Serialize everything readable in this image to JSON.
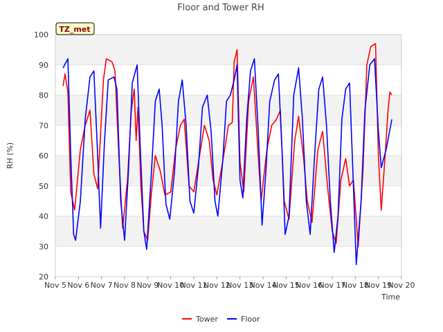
{
  "chart_data": {
    "type": "line",
    "title": "Floor and Tower RH",
    "xlabel": "Time",
    "ylabel": "RH (%)",
    "site_badge": "TZ_met",
    "x_ticks": [
      "Nov 5",
      "Nov 6",
      "Nov 7",
      "Nov 8",
      "Nov 9",
      "Nov 10",
      "Nov 11",
      "Nov 12",
      "Nov 13",
      "Nov 14",
      "Nov 15",
      "Nov 16",
      "Nov 17",
      "Nov 18",
      "Nov 19",
      "Nov 20"
    ],
    "xlim": [
      "2023-11-05",
      "2023-11-20"
    ],
    "ylim": [
      20,
      100
    ],
    "y_ticks": [
      20,
      30,
      40,
      50,
      60,
      70,
      80,
      90,
      100
    ],
    "grid": "horizontal bands",
    "legend_position": "bottom-center",
    "series": [
      {
        "name": "Tower",
        "color": "#ff0000",
        "points": [
          [
            "2023-11-05 08:00",
            83
          ],
          [
            "2023-11-05 10:00",
            87
          ],
          [
            "2023-11-05 13:00",
            81
          ],
          [
            "2023-11-05 16:00",
            48
          ],
          [
            "2023-11-05 20:00",
            42
          ],
          [
            "2023-11-06 02:00",
            62
          ],
          [
            "2023-11-06 07:00",
            70
          ],
          [
            "2023-11-06 12:00",
            75
          ],
          [
            "2023-11-06 16:00",
            54
          ],
          [
            "2023-11-06 20:00",
            49
          ],
          [
            "2023-11-07 02:00",
            85
          ],
          [
            "2023-11-07 05:00",
            92
          ],
          [
            "2023-11-07 11:00",
            91
          ],
          [
            "2023-11-07 14:00",
            88
          ],
          [
            "2023-11-07 18:00",
            60
          ],
          [
            "2023-11-07 22:00",
            36
          ],
          [
            "2023-11-08 03:00",
            52
          ],
          [
            "2023-11-08 07:00",
            75
          ],
          [
            "2023-11-08 10:00",
            82
          ],
          [
            "2023-11-08 12:00",
            65
          ],
          [
            "2023-11-08 14:00",
            76
          ],
          [
            "2023-11-08 17:00",
            50
          ],
          [
            "2023-11-08 20:00",
            35
          ],
          [
            "2023-11-09 00:00",
            32
          ],
          [
            "2023-11-09 04:00",
            48
          ],
          [
            "2023-11-09 08:00",
            60
          ],
          [
            "2023-11-09 13:00",
            55
          ],
          [
            "2023-11-09 18:00",
            47
          ],
          [
            "2023-11-10 00:00",
            48
          ],
          [
            "2023-11-10 05:00",
            62
          ],
          [
            "2023-11-10 10:00",
            70
          ],
          [
            "2023-11-10 14:00",
            72
          ],
          [
            "2023-11-10 19:00",
            50
          ],
          [
            "2023-11-11 00:00",
            48
          ],
          [
            "2023-11-11 06:00",
            60
          ],
          [
            "2023-11-11 11:00",
            70
          ],
          [
            "2023-11-11 16:00",
            65
          ],
          [
            "2023-11-11 20:00",
            52
          ],
          [
            "2023-11-12 00:00",
            47
          ],
          [
            "2023-11-12 06:00",
            58
          ],
          [
            "2023-11-12 12:00",
            70
          ],
          [
            "2023-11-12 16:00",
            71
          ],
          [
            "2023-11-12 18:00",
            91
          ],
          [
            "2023-11-12 21:00",
            95
          ],
          [
            "2023-11-13 00:00",
            58
          ],
          [
            "2023-11-13 04:00",
            48
          ],
          [
            "2023-11-13 09:00",
            78
          ],
          [
            "2023-11-13 14:00",
            86
          ],
          [
            "2023-11-13 18:00",
            65
          ],
          [
            "2023-11-13 22:00",
            45
          ],
          [
            "2023-11-14 04:00",
            62
          ],
          [
            "2023-11-14 09:00",
            70
          ],
          [
            "2023-11-14 14:00",
            72
          ],
          [
            "2023-11-14 18:00",
            75
          ],
          [
            "2023-11-14 22:00",
            45
          ],
          [
            "2023-11-15 03:00",
            39
          ],
          [
            "2023-11-15 09:00",
            65
          ],
          [
            "2023-11-15 13:00",
            73
          ],
          [
            "2023-11-15 18:00",
            60
          ],
          [
            "2023-11-15 22:00",
            45
          ],
          [
            "2023-11-16 03:00",
            38
          ],
          [
            "2023-11-16 09:00",
            62
          ],
          [
            "2023-11-16 14:00",
            68
          ],
          [
            "2023-11-16 19:00",
            50
          ],
          [
            "2023-11-17 00:00",
            35
          ],
          [
            "2023-11-17 04:00",
            31
          ],
          [
            "2023-11-17 09:00",
            52
          ],
          [
            "2023-11-17 14:00",
            59
          ],
          [
            "2023-11-17 18:00",
            50
          ],
          [
            "2023-11-17 22:00",
            52
          ],
          [
            "2023-11-18 03:00",
            30
          ],
          [
            "2023-11-18 08:00",
            55
          ],
          [
            "2023-11-18 12:00",
            90
          ],
          [
            "2023-11-18 16:00",
            96
          ],
          [
            "2023-11-18 21:00",
            97
          ],
          [
            "2023-11-19 00:00",
            60
          ],
          [
            "2023-11-19 03:00",
            42
          ],
          [
            "2023-11-19 07:00",
            60
          ],
          [
            "2023-11-19 10:00",
            75
          ],
          [
            "2023-11-19 12:00",
            81
          ],
          [
            "2023-11-19 14:00",
            80
          ]
        ]
      },
      {
        "name": "Floor",
        "color": "#0000ff",
        "points": [
          [
            "2023-11-05 08:00",
            89
          ],
          [
            "2023-11-05 13:00",
            92
          ],
          [
            "2023-11-05 16:00",
            60
          ],
          [
            "2023-11-05 19:00",
            34
          ],
          [
            "2023-11-05 21:00",
            32
          ],
          [
            "2023-11-06 02:00",
            45
          ],
          [
            "2023-11-06 07:00",
            72
          ],
          [
            "2023-11-06 12:00",
            86
          ],
          [
            "2023-11-06 16:00",
            88
          ],
          [
            "2023-11-06 20:00",
            60
          ],
          [
            "2023-11-06 23:00",
            36
          ],
          [
            "2023-11-07 03:00",
            64
          ],
          [
            "2023-11-07 07:00",
            85
          ],
          [
            "2023-11-07 13:00",
            86
          ],
          [
            "2023-11-07 16:00",
            82
          ],
          [
            "2023-11-07 20:00",
            45
          ],
          [
            "2023-11-08 00:00",
            32
          ],
          [
            "2023-11-08 04:00",
            55
          ],
          [
            "2023-11-08 08:00",
            84
          ],
          [
            "2023-11-08 13:00",
            90
          ],
          [
            "2023-11-08 16:00",
            65
          ],
          [
            "2023-11-08 20:00",
            35
          ],
          [
            "2023-11-08 23:00",
            29
          ],
          [
            "2023-11-09 04:00",
            55
          ],
          [
            "2023-11-09 08:00",
            78
          ],
          [
            "2023-11-09 12:00",
            82
          ],
          [
            "2023-11-09 15:00",
            70
          ],
          [
            "2023-11-09 19:00",
            44
          ],
          [
            "2023-11-09 23:00",
            39
          ],
          [
            "2023-11-10 04:00",
            55
          ],
          [
            "2023-11-10 08:00",
            78
          ],
          [
            "2023-11-10 12:00",
            85
          ],
          [
            "2023-11-10 16:00",
            70
          ],
          [
            "2023-11-10 20:00",
            45
          ],
          [
            "2023-11-11 00:00",
            41
          ],
          [
            "2023-11-11 05:00",
            57
          ],
          [
            "2023-11-11 09:00",
            76
          ],
          [
            "2023-11-11 14:00",
            80
          ],
          [
            "2023-11-11 18:00",
            68
          ],
          [
            "2023-11-11 22:00",
            45
          ],
          [
            "2023-11-12 01:00",
            40
          ],
          [
            "2023-11-12 06:00",
            58
          ],
          [
            "2023-11-12 10:00",
            78
          ],
          [
            "2023-11-12 14:00",
            80
          ],
          [
            "2023-11-12 18:00",
            85
          ],
          [
            "2023-11-12 21:00",
            90
          ],
          [
            "2023-11-13 00:00",
            52
          ],
          [
            "2023-11-13 03:00",
            46
          ],
          [
            "2023-11-13 07:00",
            72
          ],
          [
            "2023-11-13 11:00",
            88
          ],
          [
            "2023-11-13 15:00",
            92
          ],
          [
            "2023-11-13 19:00",
            68
          ],
          [
            "2023-11-13 23:00",
            37
          ],
          [
            "2023-11-14 03:00",
            55
          ],
          [
            "2023-11-14 07:00",
            78
          ],
          [
            "2023-11-14 12:00",
            85
          ],
          [
            "2023-11-14 16:00",
            87
          ],
          [
            "2023-11-14 20:00",
            60
          ],
          [
            "2023-11-14 23:00",
            34
          ],
          [
            "2023-11-15 03:00",
            40
          ],
          [
            "2023-11-15 08:00",
            80
          ],
          [
            "2023-11-15 13:00",
            89
          ],
          [
            "2023-11-15 17:00",
            72
          ],
          [
            "2023-11-15 21:00",
            45
          ],
          [
            "2023-11-16 01:00",
            34
          ],
          [
            "2023-11-16 06:00",
            62
          ],
          [
            "2023-11-16 10:00",
            82
          ],
          [
            "2023-11-16 14:00",
            86
          ],
          [
            "2023-11-16 18:00",
            70
          ],
          [
            "2023-11-16 22:00",
            45
          ],
          [
            "2023-11-17 02:00",
            28
          ],
          [
            "2023-11-17 06:00",
            40
          ],
          [
            "2023-11-17 10:00",
            72
          ],
          [
            "2023-11-17 14:00",
            82
          ],
          [
            "2023-11-17 18:00",
            84
          ],
          [
            "2023-11-17 22:00",
            50
          ],
          [
            "2023-11-18 01:00",
            24
          ],
          [
            "2023-11-18 06:00",
            45
          ],
          [
            "2023-11-18 10:00",
            75
          ],
          [
            "2023-11-18 15:00",
            90
          ],
          [
            "2023-11-18 20:00",
            92
          ],
          [
            "2023-11-19 00:00",
            68
          ],
          [
            "2023-11-19 03:00",
            56
          ],
          [
            "2023-11-19 08:00",
            62
          ],
          [
            "2023-11-19 14:00",
            72
          ]
        ]
      }
    ]
  }
}
